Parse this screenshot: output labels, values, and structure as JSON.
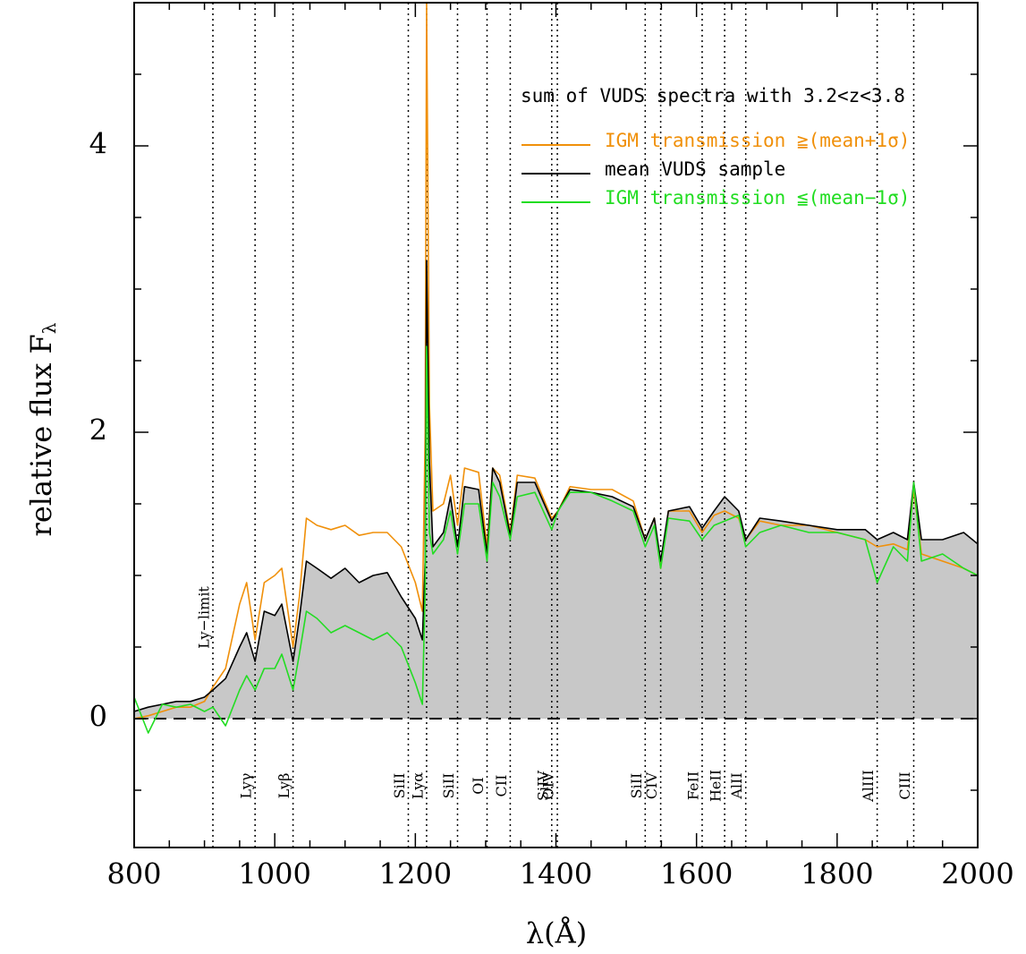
{
  "chart_data": {
    "type": "line",
    "legend_title": "sum of VUDS spectra with 3.2<z<3.8",
    "xlabel": "λ(Å)",
    "ylabel": "relative flux F",
    "ylabel_sub": "λ",
    "xlim": [
      800,
      2000
    ],
    "ylim": [
      -0.9,
      5
    ],
    "xticks": [
      800,
      1000,
      1200,
      1400,
      1600,
      1800,
      2000
    ],
    "yticks": [
      0,
      2,
      4
    ],
    "xminorticks": [
      850,
      900,
      950,
      1050,
      1100,
      1150,
      1250,
      1300,
      1350,
      1450,
      1500,
      1550,
      1650,
      1700,
      1750,
      1850,
      1900,
      1950
    ],
    "yminorticks": [
      -0.5,
      0.5,
      1,
      1.5,
      2.5,
      3,
      3.5,
      4.5
    ],
    "zero_line": "dashed",
    "fill_series": 1,
    "fill_color": "#c8c8c8",
    "x": [
      800,
      820,
      840,
      860,
      880,
      900,
      912,
      930,
      950,
      960,
      972,
      985,
      1000,
      1010,
      1026,
      1035,
      1045,
      1060,
      1080,
      1100,
      1120,
      1140,
      1160,
      1180,
      1200,
      1210,
      1214,
      1216,
      1220,
      1225,
      1240,
      1250,
      1260,
      1270,
      1290,
      1302,
      1310,
      1320,
      1335,
      1345,
      1370,
      1394,
      1403,
      1420,
      1450,
      1480,
      1510,
      1527,
      1540,
      1549,
      1560,
      1590,
      1608,
      1625,
      1640,
      1660,
      1670,
      1690,
      1720,
      1760,
      1800,
      1840,
      1857,
      1880,
      1900,
      1909,
      1920,
      1950,
      1980,
      2000
    ],
    "series": [
      {
        "name": "IGM transmission ≧(mean+1σ)",
        "color": "#f0900a",
        "values": [
          0.0,
          0.02,
          0.05,
          0.08,
          0.08,
          0.12,
          0.22,
          0.35,
          0.8,
          0.95,
          0.55,
          0.95,
          1.0,
          1.05,
          0.5,
          0.85,
          1.4,
          1.35,
          1.32,
          1.35,
          1.28,
          1.3,
          1.3,
          1.2,
          0.95,
          0.75,
          2.0,
          5.0,
          2.2,
          1.45,
          1.5,
          1.7,
          1.35,
          1.75,
          1.72,
          1.2,
          1.75,
          1.7,
          1.3,
          1.7,
          1.68,
          1.4,
          1.45,
          1.62,
          1.6,
          1.6,
          1.52,
          1.25,
          1.4,
          1.05,
          1.45,
          1.45,
          1.3,
          1.42,
          1.45,
          1.4,
          1.25,
          1.38,
          1.35,
          1.35,
          1.3,
          1.25,
          1.2,
          1.22,
          1.18,
          1.6,
          1.15,
          1.1,
          1.05,
          1.0
        ]
      },
      {
        "name": "mean VUDS sample",
        "color": "#000000",
        "values": [
          0.05,
          0.08,
          0.1,
          0.12,
          0.12,
          0.15,
          0.2,
          0.28,
          0.5,
          0.6,
          0.4,
          0.75,
          0.72,
          0.8,
          0.4,
          0.7,
          1.1,
          1.05,
          0.98,
          1.05,
          0.95,
          1.0,
          1.02,
          0.85,
          0.7,
          0.55,
          1.1,
          3.2,
          1.8,
          1.2,
          1.3,
          1.55,
          1.2,
          1.62,
          1.6,
          1.15,
          1.75,
          1.65,
          1.28,
          1.65,
          1.65,
          1.38,
          1.45,
          1.6,
          1.58,
          1.55,
          1.48,
          1.25,
          1.4,
          1.1,
          1.45,
          1.48,
          1.33,
          1.45,
          1.55,
          1.45,
          1.25,
          1.4,
          1.38,
          1.35,
          1.32,
          1.32,
          1.25,
          1.3,
          1.25,
          1.65,
          1.25,
          1.25,
          1.3,
          1.22
        ]
      },
      {
        "name": "IGM transmission ≦(mean−1σ)",
        "color": "#22dd22",
        "values": [
          0.15,
          -0.1,
          0.1,
          0.08,
          0.1,
          0.05,
          0.08,
          -0.05,
          0.2,
          0.3,
          0.2,
          0.35,
          0.35,
          0.45,
          0.2,
          0.45,
          0.75,
          0.7,
          0.6,
          0.65,
          0.6,
          0.55,
          0.6,
          0.5,
          0.25,
          0.1,
          0.9,
          2.6,
          1.3,
          1.15,
          1.25,
          1.45,
          1.15,
          1.5,
          1.5,
          1.1,
          1.65,
          1.55,
          1.25,
          1.55,
          1.58,
          1.32,
          1.45,
          1.58,
          1.58,
          1.52,
          1.45,
          1.2,
          1.35,
          1.05,
          1.4,
          1.38,
          1.25,
          1.35,
          1.38,
          1.42,
          1.2,
          1.3,
          1.35,
          1.3,
          1.3,
          1.25,
          0.95,
          1.2,
          1.1,
          1.65,
          1.1,
          1.15,
          1.05,
          1.0
        ]
      }
    ],
    "lines": [
      {
        "x": 912,
        "label": "Ly−limit"
      },
      {
        "x": 972,
        "label": "Lyγ"
      },
      {
        "x": 1026,
        "label": "Lyβ"
      },
      {
        "x": 1190,
        "label": "SiII"
      },
      {
        "x": 1216,
        "label": "Lyα"
      },
      {
        "x": 1260,
        "label": "SiII"
      },
      {
        "x": 1302,
        "label": "OI"
      },
      {
        "x": 1335,
        "label": "CII"
      },
      {
        "x": 1394,
        "label": "SiIV"
      },
      {
        "x": 1402,
        "label": "OIV"
      },
      {
        "x": 1527,
        "label": "SiII"
      },
      {
        "x": 1549,
        "label": "CIV"
      },
      {
        "x": 1608,
        "label": "FeII"
      },
      {
        "x": 1640,
        "label": "HeII"
      },
      {
        "x": 1670,
        "label": "AlII"
      },
      {
        "x": 1857,
        "label": "AlIII"
      },
      {
        "x": 1909,
        "label": "CIII"
      }
    ]
  }
}
